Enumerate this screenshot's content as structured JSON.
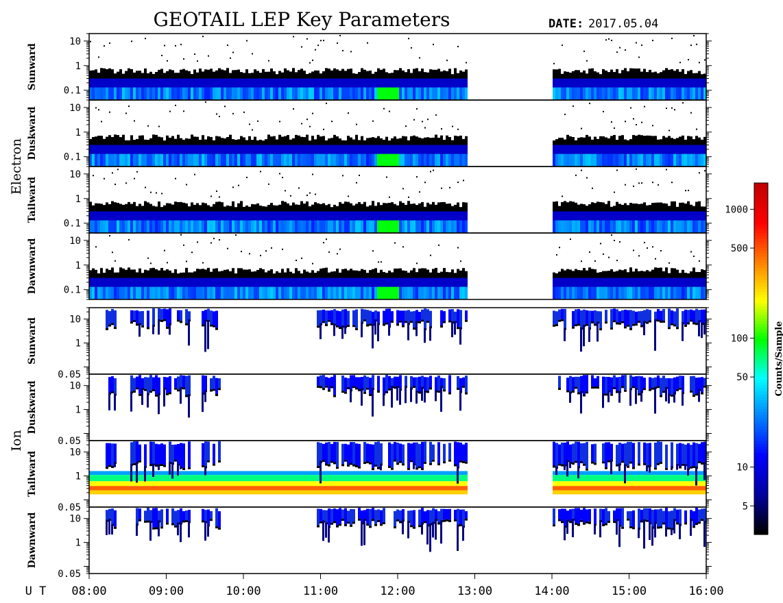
{
  "chart_data": {
    "type": "heatmap",
    "title": "GEOTAIL LEP Key Parameters",
    "date_label": "DATE:",
    "date_value": "2017.05.04",
    "time_axis": {
      "label": "U T",
      "range_hours": [
        8,
        16
      ],
      "ticks": [
        "08:00",
        "09:00",
        "10:00",
        "11:00",
        "12:00",
        "13:00",
        "14:00",
        "15:00",
        "16:00"
      ]
    },
    "data_gap_hours": [
      12.9,
      14.0
    ],
    "groups": [
      {
        "name": "Electron",
        "y_scale": "log",
        "ylim": [
          0.04,
          20
        ],
        "yticks": [
          "0.1",
          "1",
          "10"
        ],
        "panels": [
          {
            "name": "Sunward"
          },
          {
            "name": "Duskward"
          },
          {
            "name": "Tailward"
          },
          {
            "name": "Dawnward"
          }
        ]
      },
      {
        "name": "Ion",
        "y_scale": "log",
        "ylim": [
          0.05,
          30
        ],
        "yticks": [
          "0.05",
          "1",
          "10"
        ],
        "panels": [
          {
            "name": "Sunward"
          },
          {
            "name": "Duskward"
          },
          {
            "name": "Tailward"
          },
          {
            "name": "Dawnward"
          }
        ]
      }
    ],
    "colorbar": {
      "label": "Counts/Sample",
      "scale": "log",
      "range": [
        3,
        1600
      ],
      "ticks": [
        "5",
        "10",
        "50",
        "100",
        "500",
        "1000"
      ],
      "tick_values": [
        5,
        10,
        50,
        100,
        500,
        1000
      ],
      "colors": [
        "#000000",
        "#0000a0",
        "#0000ff",
        "#0080ff",
        "#00ffff",
        "#00ff00",
        "#ffff00",
        "#ff8000",
        "#ff0000",
        "#c00000"
      ]
    }
  }
}
